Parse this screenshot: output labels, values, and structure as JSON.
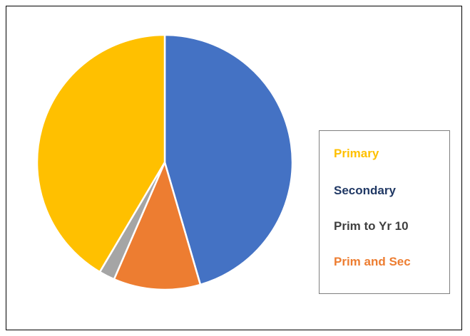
{
  "chart_data": {
    "type": "pie",
    "title": "",
    "legend": "right",
    "categories": [
      "Primary",
      "Secondary",
      "Prim to Yr 10",
      "Prim and Sec"
    ],
    "values": [
      41.5,
      45.5,
      2.0,
      11.0
    ],
    "colors": [
      "#FFC000",
      "#4472C4",
      "#A5A5A5",
      "#ED7D31"
    ],
    "slice_order": [
      "Secondary",
      "Prim and Sec",
      "Prim to Yr 10",
      "Primary"
    ],
    "legend_text_colors": [
      "#FFC000",
      "#203864",
      "#404040",
      "#ED7D31"
    ]
  }
}
